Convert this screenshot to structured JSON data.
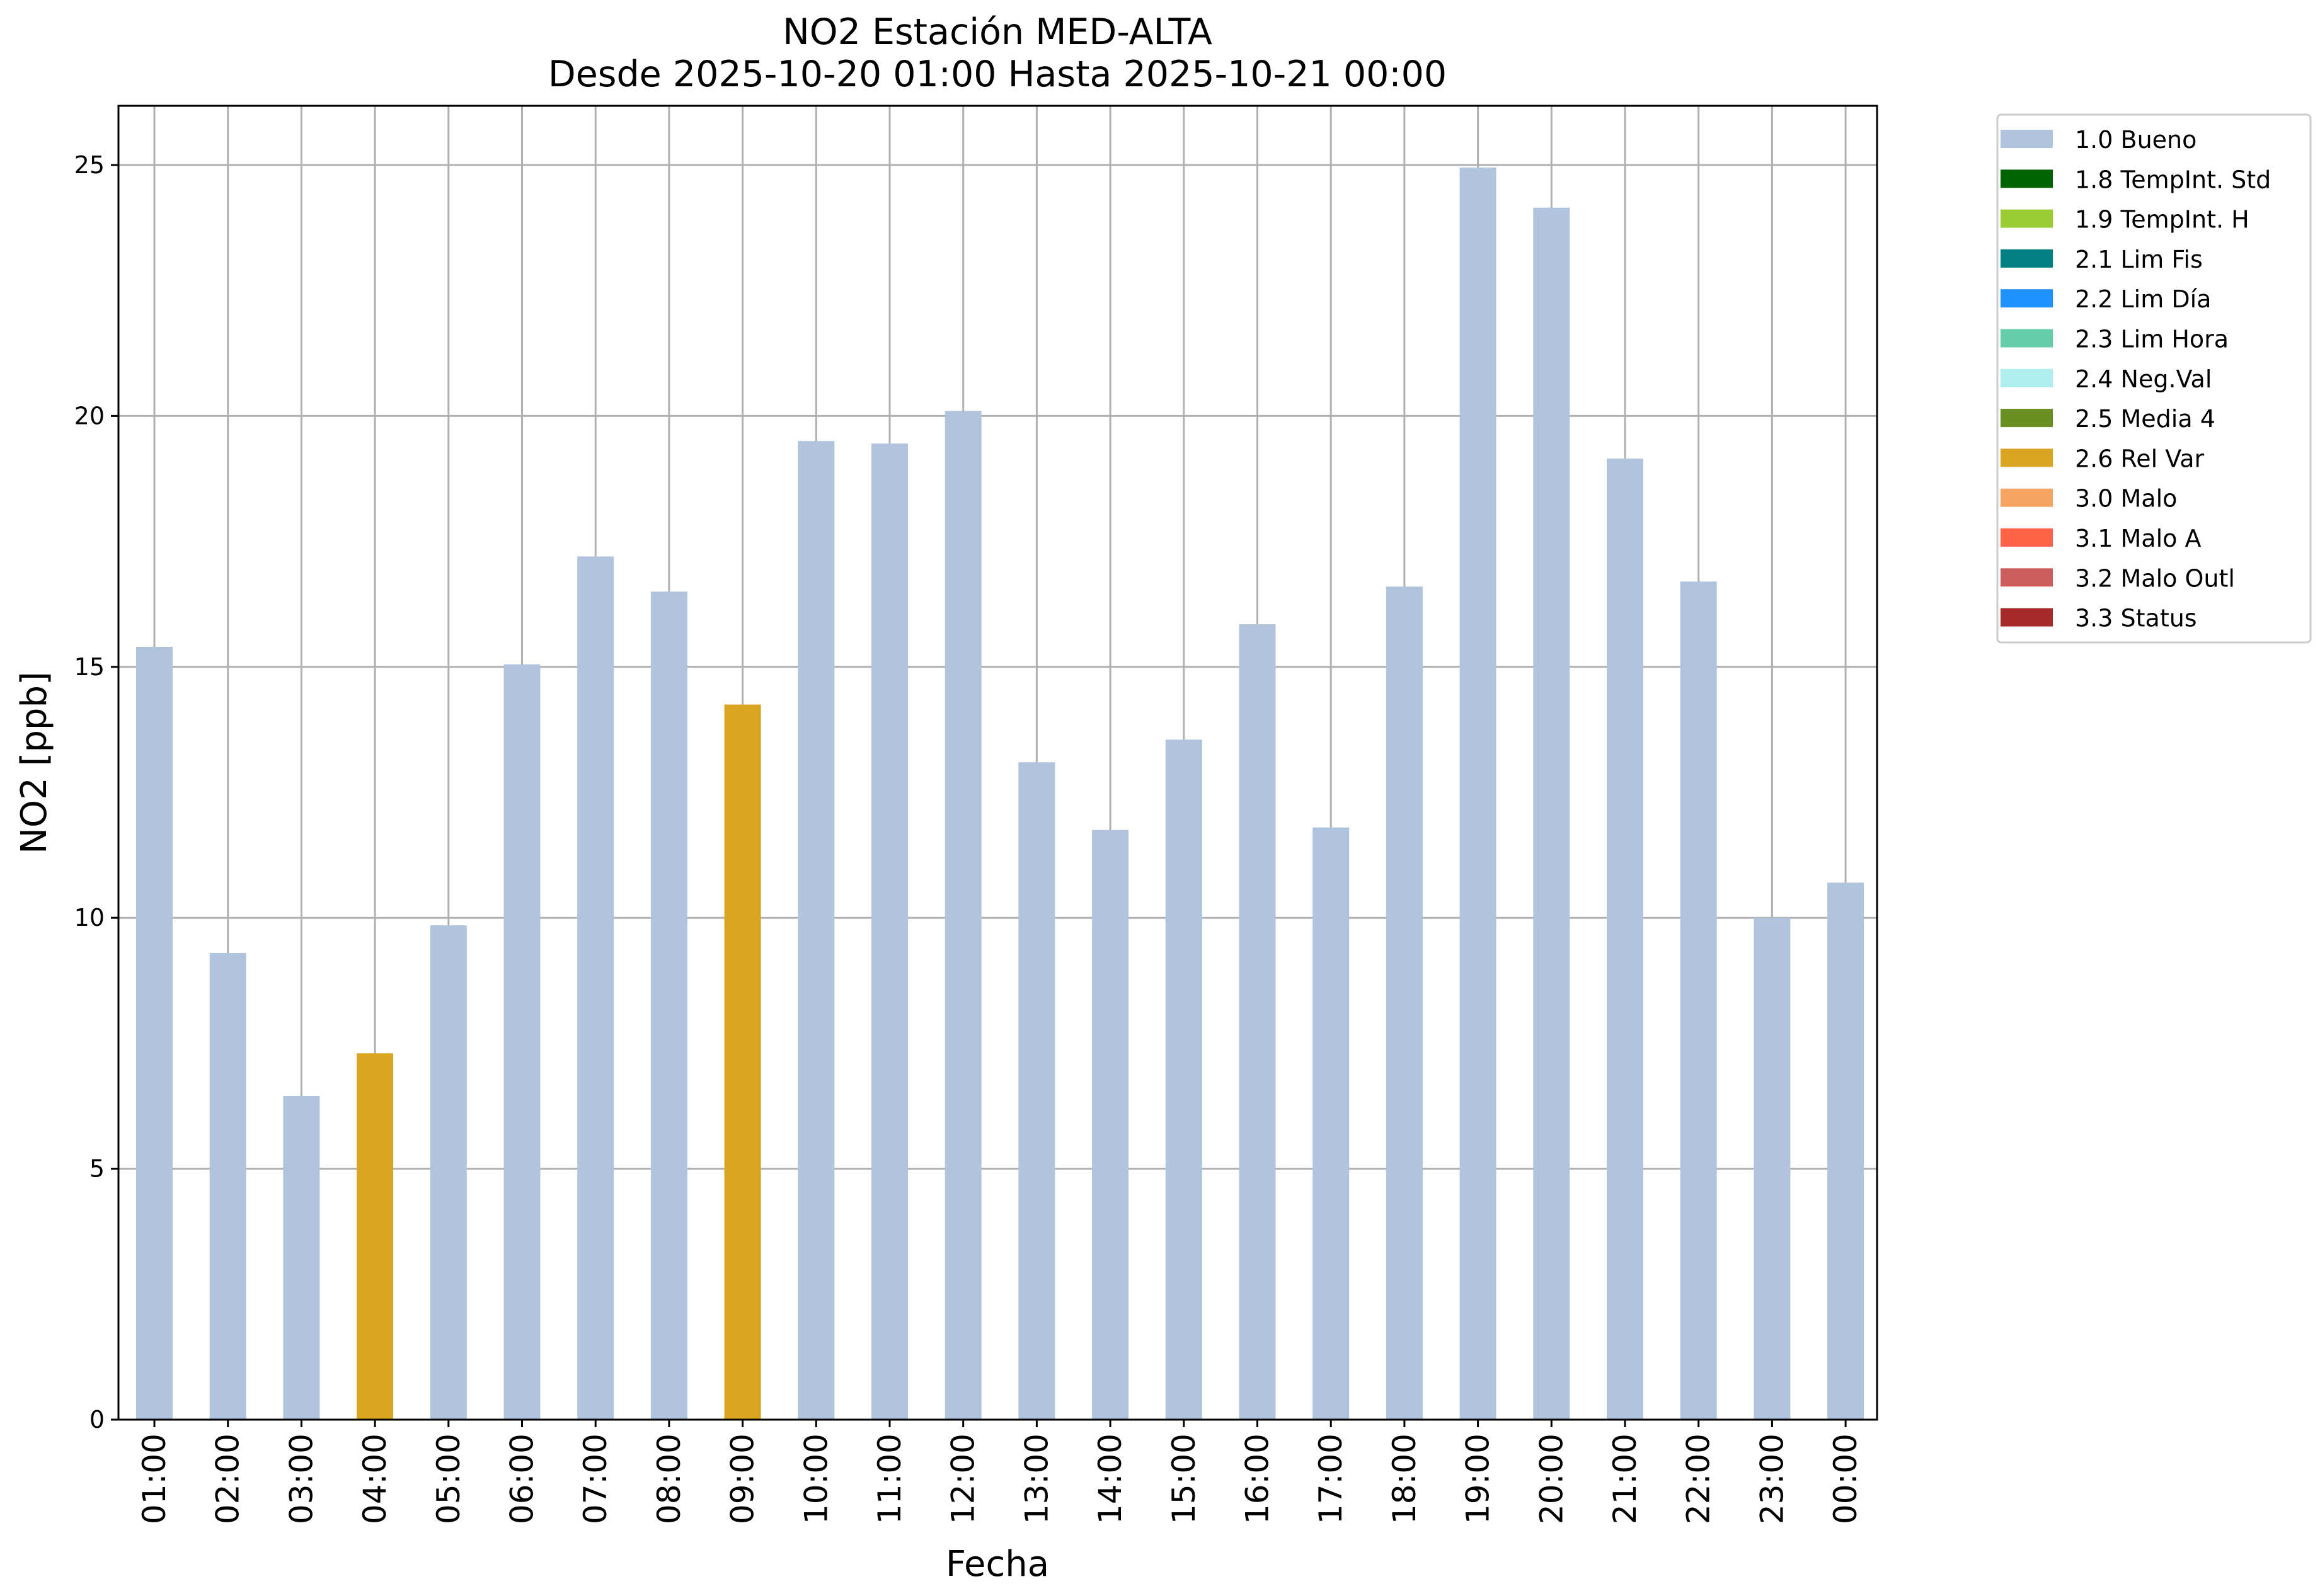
{
  "chart_data": {
    "type": "bar",
    "title": "NO2 Estación MED-ALTA",
    "subtitle": "Desde 2025-10-20 01:00 Hasta 2025-10-21 00:00",
    "xlabel": "Fecha",
    "ylabel": "NO2 [ppb]",
    "ylim": [
      0,
      26.2
    ],
    "yticks": [
      0,
      5,
      10,
      15,
      20,
      25
    ],
    "grid": true,
    "legend_position": "outside-top-right",
    "categories": [
      "01:00",
      "02:00",
      "03:00",
      "04:00",
      "05:00",
      "06:00",
      "07:00",
      "08:00",
      "09:00",
      "10:00",
      "11:00",
      "12:00",
      "13:00",
      "14:00",
      "15:00",
      "16:00",
      "17:00",
      "18:00",
      "19:00",
      "20:00",
      "21:00",
      "22:00",
      "23:00",
      "00:00"
    ],
    "values": [
      15.4,
      9.3,
      6.45,
      7.3,
      9.85,
      15.05,
      17.2,
      16.5,
      14.25,
      19.5,
      19.45,
      20.1,
      13.1,
      11.75,
      13.55,
      15.85,
      11.8,
      16.6,
      24.95,
      24.15,
      19.15,
      16.7,
      10.0,
      10.7
    ],
    "flags": [
      "1.0 Bueno",
      "1.0 Bueno",
      "1.0 Bueno",
      "2.6 Rel Var",
      "1.0 Bueno",
      "1.0 Bueno",
      "1.0 Bueno",
      "1.0 Bueno",
      "2.6 Rel Var",
      "1.0 Bueno",
      "1.0 Bueno",
      "1.0 Bueno",
      "1.0 Bueno",
      "1.0 Bueno",
      "1.0 Bueno",
      "1.0 Bueno",
      "1.0 Bueno",
      "1.0 Bueno",
      "1.0 Bueno",
      "1.0 Bueno",
      "1.0 Bueno",
      "1.0 Bueno",
      "1.0 Bueno",
      "1.0 Bueno"
    ],
    "legend": [
      {
        "label": "1.0 Bueno",
        "color": "#b0c4de"
      },
      {
        "label": "1.8 TempInt. Std",
        "color": "#006400"
      },
      {
        "label": "1.9 TempInt. H",
        "color": "#9acd32"
      },
      {
        "label": "2.1 Lim Fis",
        "color": "#008080"
      },
      {
        "label": "2.2 Lim Día",
        "color": "#1e90ff"
      },
      {
        "label": "2.3 Lim Hora",
        "color": "#66cdaa"
      },
      {
        "label": "2.4 Neg.Val",
        "color": "#afeeee"
      },
      {
        "label": "2.5 Media 4",
        "color": "#6b8e23"
      },
      {
        "label": "2.6 Rel Var",
        "color": "#daa520"
      },
      {
        "label": "3.0 Malo",
        "color": "#f4a460"
      },
      {
        "label": "3.1 Malo A",
        "color": "#ff6347"
      },
      {
        "label": "3.2 Malo Outl",
        "color": "#cd5c5c"
      },
      {
        "label": "3.3 Status",
        "color": "#a52a2a"
      }
    ]
  }
}
